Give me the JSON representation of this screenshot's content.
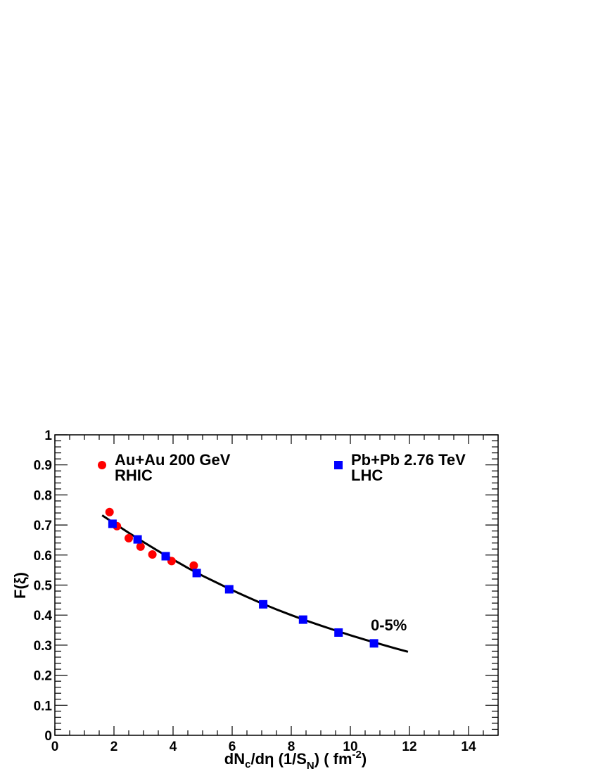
{
  "chart_data": {
    "type": "scatter",
    "xlabel": {
      "main": "dN",
      "sub1": "c",
      "mid": "/dη (1/S",
      "sub2": "N",
      "tail1": ") ( fm",
      "sup": "-2",
      "tail2": ")"
    },
    "ylabel": "F(ξ)",
    "xlim": [
      0,
      15
    ],
    "ylim": [
      0,
      1
    ],
    "x_ticks": [
      0,
      2,
      4,
      6,
      8,
      10,
      12,
      14
    ],
    "y_ticks": [
      0,
      0.1,
      0.2,
      0.3,
      0.4,
      0.5,
      0.6,
      0.7,
      0.8,
      0.9,
      1
    ],
    "x_tick_labels": [
      "0",
      "2",
      "4",
      "6",
      "8",
      "10",
      "12",
      "14"
    ],
    "y_tick_labels": [
      "0",
      "0.1",
      "0.2",
      "0.3",
      "0.4",
      "0.5",
      "0.6",
      "0.7",
      "0.8",
      "0.9",
      "1"
    ],
    "grid": false,
    "series": [
      {
        "name": "Au+Au 200 GeV",
        "name2": "RHIC",
        "marker": "circle",
        "color": "#ff0000",
        "points": [
          [
            1.85,
            0.743
          ],
          [
            2.1,
            0.696
          ],
          [
            2.5,
            0.656
          ],
          [
            2.9,
            0.628
          ],
          [
            3.3,
            0.602
          ],
          [
            3.95,
            0.58
          ],
          [
            4.7,
            0.565
          ]
        ]
      },
      {
        "name": "Pb+Pb 2.76 TeV",
        "name2": "LHC",
        "marker": "square",
        "color": "#0000ff",
        "points": [
          [
            1.95,
            0.704
          ],
          [
            2.8,
            0.652
          ],
          [
            3.75,
            0.596
          ],
          [
            4.8,
            0.54
          ],
          [
            5.9,
            0.486
          ],
          [
            7.05,
            0.436
          ],
          [
            8.4,
            0.385
          ],
          [
            9.6,
            0.342
          ],
          [
            10.8,
            0.306
          ]
        ]
      }
    ],
    "fit_curve": {
      "color": "#000000",
      "points": [
        [
          1.6,
          0.732
        ],
        [
          2.0,
          0.706
        ],
        [
          2.5,
          0.674
        ],
        [
          3.0,
          0.643
        ],
        [
          3.5,
          0.613
        ],
        [
          4.0,
          0.585
        ],
        [
          4.5,
          0.557
        ],
        [
          5.0,
          0.531
        ],
        [
          5.5,
          0.507
        ],
        [
          6.0,
          0.483
        ],
        [
          6.5,
          0.461
        ],
        [
          7.0,
          0.439
        ],
        [
          7.5,
          0.419
        ],
        [
          8.0,
          0.4
        ],
        [
          8.5,
          0.382
        ],
        [
          9.0,
          0.365
        ],
        [
          9.5,
          0.349
        ],
        [
          10.0,
          0.333
        ],
        [
          10.5,
          0.318
        ],
        [
          11.0,
          0.304
        ],
        [
          11.5,
          0.29
        ],
        [
          11.95,
          0.278
        ]
      ]
    },
    "annotation": "0-5%",
    "legend_placement": "top"
  }
}
